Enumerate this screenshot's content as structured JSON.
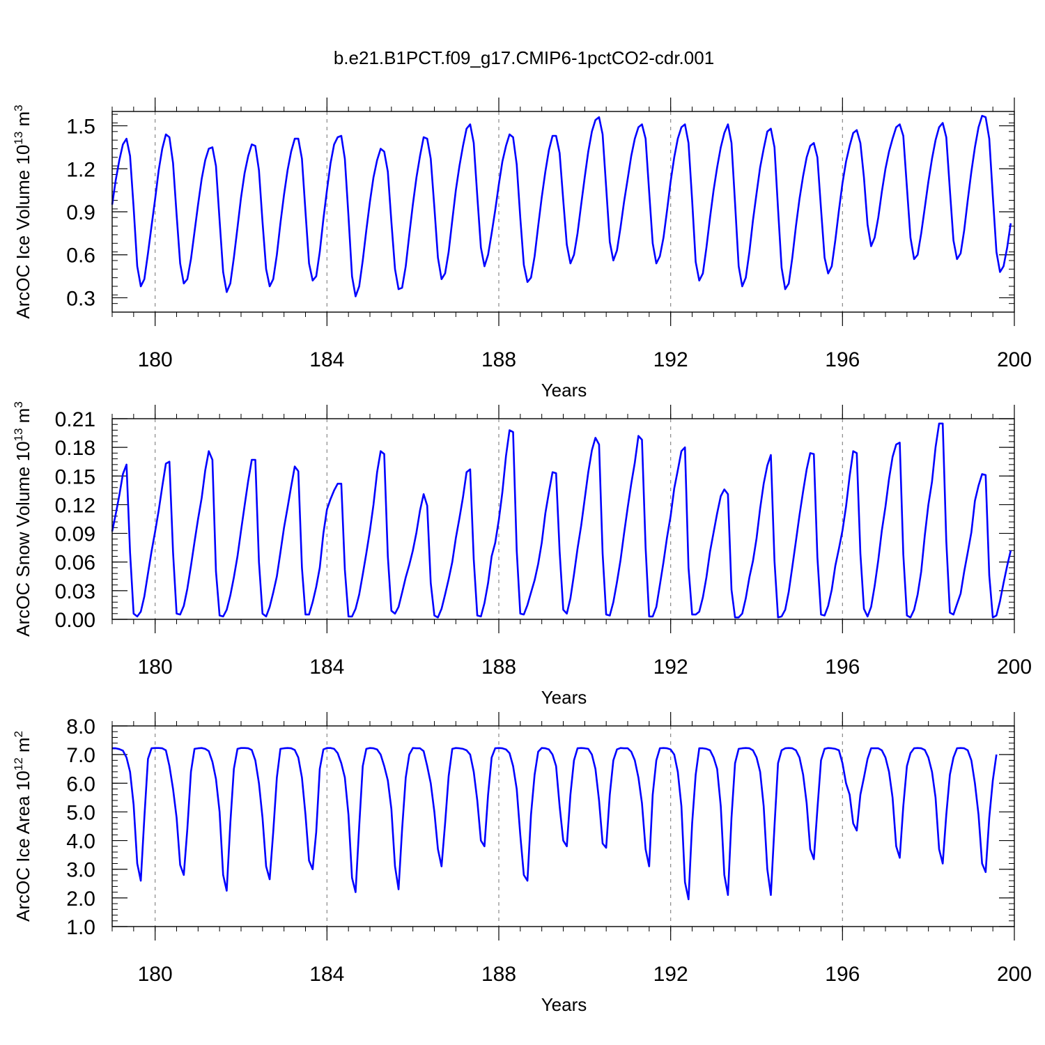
{
  "title": "b.e21.B1PCT.f09_g17.CMIP6-1pctCO2-cdr.001",
  "line_color": "#0000ff",
  "chart_data": [
    {
      "type": "line",
      "ylabel_main": "ArcOC Ice Volume 10",
      "ylabel_exp": "13",
      "ylabel_unit": " m",
      "ylabel_unit_exp": "3",
      "xlabel": "Years",
      "xlim": [
        179,
        200
      ],
      "ylim": [
        0.2,
        1.6
      ],
      "yticks": [
        0.3,
        0.6,
        0.9,
        1.2,
        1.5
      ],
      "ytick_labels": [
        "0.3",
        "0.6",
        "0.9",
        "1.2",
        "1.5"
      ],
      "xticks": [
        180,
        184,
        188,
        192,
        196,
        200
      ],
      "xtick_labels": [
        "180",
        "184",
        "188",
        "192",
        "196",
        "200"
      ],
      "series": [
        {
          "x_start": 179.0,
          "x_step": 0.08333,
          "values": [
            0.95,
            1.12,
            1.26,
            1.37,
            1.41,
            1.29,
            0.93,
            0.52,
            0.38,
            0.43,
            0.61,
            0.8,
            0.99,
            1.19,
            1.34,
            1.44,
            1.42,
            1.24,
            0.88,
            0.54,
            0.4,
            0.43,
            0.57,
            0.76,
            0.95,
            1.13,
            1.26,
            1.34,
            1.35,
            1.22,
            0.84,
            0.48,
            0.34,
            0.4,
            0.58,
            0.79,
            1.0,
            1.17,
            1.29,
            1.37,
            1.36,
            1.19,
            0.83,
            0.5,
            0.38,
            0.43,
            0.6,
            0.82,
            1.02,
            1.19,
            1.32,
            1.41,
            1.41,
            1.27,
            0.9,
            0.54,
            0.42,
            0.45,
            0.62,
            0.85,
            1.05,
            1.24,
            1.37,
            1.42,
            1.43,
            1.27,
            0.87,
            0.45,
            0.31,
            0.38,
            0.56,
            0.77,
            0.97,
            1.14,
            1.26,
            1.34,
            1.32,
            1.18,
            0.83,
            0.5,
            0.36,
            0.37,
            0.52,
            0.74,
            0.95,
            1.14,
            1.29,
            1.42,
            1.41,
            1.27,
            0.93,
            0.58,
            0.43,
            0.47,
            0.62,
            0.84,
            1.05,
            1.22,
            1.36,
            1.48,
            1.51,
            1.38,
            1.01,
            0.65,
            0.52,
            0.6,
            0.75,
            0.91,
            1.09,
            1.25,
            1.36,
            1.44,
            1.42,
            1.23,
            0.86,
            0.53,
            0.41,
            0.44,
            0.59,
            0.8,
            1.0,
            1.18,
            1.33,
            1.43,
            1.43,
            1.31,
            0.98,
            0.67,
            0.54,
            0.6,
            0.75,
            0.95,
            1.14,
            1.32,
            1.46,
            1.54,
            1.56,
            1.44,
            1.07,
            0.69,
            0.56,
            0.63,
            0.79,
            0.97,
            1.13,
            1.29,
            1.41,
            1.49,
            1.51,
            1.41,
            1.04,
            0.68,
            0.54,
            0.59,
            0.72,
            0.91,
            1.11,
            1.28,
            1.41,
            1.49,
            1.51,
            1.38,
            0.98,
            0.55,
            0.42,
            0.47,
            0.65,
            0.86,
            1.05,
            1.21,
            1.35,
            1.45,
            1.51,
            1.38,
            0.96,
            0.52,
            0.38,
            0.44,
            0.62,
            0.84,
            1.03,
            1.21,
            1.34,
            1.46,
            1.48,
            1.35,
            0.92,
            0.51,
            0.36,
            0.4,
            0.58,
            0.8,
            0.99,
            1.15,
            1.28,
            1.36,
            1.38,
            1.28,
            0.92,
            0.58,
            0.47,
            0.52,
            0.7,
            0.91,
            1.1,
            1.25,
            1.36,
            1.45,
            1.47,
            1.38,
            1.14,
            0.81,
            0.66,
            0.72,
            0.86,
            1.04,
            1.2,
            1.32,
            1.41,
            1.49,
            1.51,
            1.43,
            1.07,
            0.72,
            0.57,
            0.6,
            0.75,
            0.93,
            1.11,
            1.27,
            1.4,
            1.49,
            1.52,
            1.42,
            1.05,
            0.7,
            0.57,
            0.61,
            0.77,
            0.98,
            1.18,
            1.35,
            1.49,
            1.57,
            1.56,
            1.41,
            1.01,
            0.62,
            0.48,
            0.52,
            0.65,
            0.82
          ]
        }
      ]
    },
    {
      "type": "line",
      "ylabel_main": "ArcOC Snow Volume 10",
      "ylabel_exp": "13",
      "ylabel_unit": " m",
      "ylabel_unit_exp": "3",
      "xlabel": "Years",
      "xlim": [
        179,
        200
      ],
      "ylim": [
        0.0,
        0.21
      ],
      "yticks": [
        0.0,
        0.03,
        0.06,
        0.09,
        0.12,
        0.15,
        0.18,
        0.21
      ],
      "ytick_labels": [
        "0.00",
        "0.03",
        "0.06",
        "0.09",
        "0.12",
        "0.15",
        "0.18",
        "0.21"
      ],
      "xticks": [
        180,
        184,
        188,
        192,
        196,
        200
      ],
      "xtick_labels": [
        "180",
        "184",
        "188",
        "192",
        "196",
        "200"
      ],
      "series": [
        {
          "x_start": 179.0,
          "x_step": 0.08333,
          "values": [
            0.092,
            0.11,
            0.13,
            0.152,
            0.162,
            0.07,
            0.006,
            0.003,
            0.008,
            0.024,
            0.048,
            0.071,
            0.092,
            0.114,
            0.139,
            0.163,
            0.165,
            0.07,
            0.006,
            0.005,
            0.014,
            0.032,
            0.056,
            0.081,
            0.105,
            0.127,
            0.156,
            0.176,
            0.167,
            0.05,
            0.004,
            0.003,
            0.01,
            0.025,
            0.044,
            0.066,
            0.093,
            0.119,
            0.145,
            0.167,
            0.167,
            0.06,
            0.006,
            0.003,
            0.013,
            0.028,
            0.045,
            0.07,
            0.096,
            0.117,
            0.139,
            0.16,
            0.155,
            0.054,
            0.005,
            0.005,
            0.018,
            0.034,
            0.054,
            0.09,
            0.115,
            0.126,
            0.135,
            0.142,
            0.142,
            0.052,
            0.003,
            0.003,
            0.011,
            0.026,
            0.047,
            0.069,
            0.093,
            0.12,
            0.154,
            0.176,
            0.173,
            0.066,
            0.009,
            0.006,
            0.013,
            0.028,
            0.044,
            0.057,
            0.072,
            0.091,
            0.114,
            0.131,
            0.119,
            0.038,
            0.004,
            0.002,
            0.011,
            0.026,
            0.042,
            0.06,
            0.085,
            0.106,
            0.128,
            0.154,
            0.157,
            0.063,
            0.004,
            0.003,
            0.017,
            0.038,
            0.066,
            0.08,
            0.104,
            0.133,
            0.171,
            0.198,
            0.196,
            0.072,
            0.006,
            0.005,
            0.015,
            0.028,
            0.041,
            0.058,
            0.08,
            0.111,
            0.133,
            0.154,
            0.153,
            0.071,
            0.01,
            0.006,
            0.022,
            0.047,
            0.074,
            0.098,
            0.126,
            0.154,
            0.177,
            0.19,
            0.183,
            0.069,
            0.005,
            0.004,
            0.018,
            0.039,
            0.062,
            0.09,
            0.117,
            0.142,
            0.164,
            0.192,
            0.188,
            0.075,
            0.003,
            0.003,
            0.013,
            0.036,
            0.06,
            0.086,
            0.108,
            0.137,
            0.156,
            0.176,
            0.18,
            0.054,
            0.005,
            0.005,
            0.008,
            0.023,
            0.044,
            0.071,
            0.091,
            0.111,
            0.129,
            0.136,
            0.131,
            0.031,
            0.002,
            0.002,
            0.006,
            0.022,
            0.044,
            0.061,
            0.085,
            0.116,
            0.142,
            0.161,
            0.172,
            0.061,
            0.002,
            0.003,
            0.01,
            0.029,
            0.055,
            0.082,
            0.109,
            0.134,
            0.157,
            0.174,
            0.173,
            0.065,
            0.005,
            0.004,
            0.014,
            0.031,
            0.056,
            0.074,
            0.093,
            0.118,
            0.15,
            0.176,
            0.174,
            0.069,
            0.011,
            0.003,
            0.013,
            0.035,
            0.062,
            0.093,
            0.118,
            0.147,
            0.17,
            0.183,
            0.185,
            0.068,
            0.004,
            0.002,
            0.01,
            0.026,
            0.05,
            0.088,
            0.12,
            0.144,
            0.18,
            0.205,
            0.205,
            0.082,
            0.007,
            0.005,
            0.016,
            0.027,
            0.05,
            0.07,
            0.091,
            0.124,
            0.14,
            0.152,
            0.151,
            0.046,
            0.002,
            0.004,
            0.019,
            0.038,
            0.056,
            0.072
          ]
        }
      ]
    },
    {
      "type": "line",
      "ylabel_main": "ArcOC Ice Area 10",
      "ylabel_exp": "12",
      "ylabel_unit": " m",
      "ylabel_unit_exp": "2",
      "xlabel": "Years",
      "xlim": [
        179,
        200
      ],
      "ylim": [
        1.0,
        8.0
      ],
      "yticks": [
        1.0,
        2.0,
        3.0,
        4.0,
        5.0,
        6.0,
        7.0,
        8.0
      ],
      "ytick_labels": [
        "1.0",
        "2.0",
        "3.0",
        "4.0",
        "5.0",
        "6.0",
        "7.0",
        "8.0"
      ],
      "xticks": [
        180,
        184,
        188,
        192,
        196,
        200
      ],
      "xtick_labels": [
        "180",
        "184",
        "188",
        "192",
        "196",
        "200"
      ],
      "series": [
        {
          "x_start": 179.0,
          "x_step": 0.08333,
          "values": [
            7.22,
            7.22,
            7.19,
            7.14,
            6.9,
            6.4,
            5.25,
            3.2,
            2.6,
            4.8,
            6.85,
            7.22,
            7.23,
            7.23,
            7.22,
            7.15,
            6.6,
            5.8,
            4.8,
            3.15,
            2.8,
            4.4,
            6.4,
            7.2,
            7.22,
            7.23,
            7.2,
            7.12,
            6.75,
            6.15,
            5.0,
            2.8,
            2.25,
            4.6,
            6.5,
            7.2,
            7.23,
            7.23,
            7.22,
            7.16,
            6.8,
            6.0,
            4.8,
            3.1,
            2.65,
            4.3,
            6.2,
            7.2,
            7.22,
            7.23,
            7.22,
            7.16,
            6.9,
            6.2,
            4.9,
            3.3,
            3.0,
            4.3,
            6.5,
            7.18,
            7.23,
            7.23,
            7.2,
            7.05,
            6.7,
            6.2,
            4.9,
            2.7,
            2.2,
            4.5,
            6.6,
            7.2,
            7.23,
            7.22,
            7.18,
            7.0,
            6.6,
            6.1,
            5.1,
            3.1,
            2.3,
            4.4,
            6.2,
            7.0,
            7.23,
            7.22,
            7.22,
            7.12,
            6.6,
            6.0,
            5.0,
            3.7,
            3.1,
            4.6,
            6.25,
            7.2,
            7.23,
            7.22,
            7.2,
            7.15,
            7.0,
            6.4,
            5.4,
            4.0,
            3.8,
            5.6,
            6.9,
            7.22,
            7.23,
            7.22,
            7.18,
            7.05,
            6.6,
            5.8,
            4.2,
            2.8,
            2.6,
            4.9,
            6.3,
            7.1,
            7.23,
            7.22,
            7.18,
            7.0,
            6.6,
            5.2,
            4.0,
            3.8,
            5.6,
            6.8,
            7.22,
            7.23,
            7.22,
            7.2,
            7.0,
            6.5,
            5.4,
            3.9,
            3.75,
            5.6,
            6.8,
            7.18,
            7.23,
            7.22,
            7.22,
            7.1,
            6.8,
            6.2,
            5.3,
            3.7,
            3.1,
            5.6,
            6.8,
            7.22,
            7.23,
            7.22,
            7.18,
            7.0,
            6.4,
            5.2,
            2.55,
            1.95,
            4.6,
            6.3,
            7.22,
            7.22,
            7.2,
            7.15,
            6.9,
            6.5,
            5.2,
            2.8,
            2.1,
            4.8,
            6.7,
            7.2,
            7.22,
            7.23,
            7.22,
            7.15,
            6.9,
            6.4,
            5.2,
            3.0,
            2.1,
            4.5,
            6.7,
            7.15,
            7.22,
            7.23,
            7.22,
            7.15,
            6.9,
            6.3,
            5.3,
            3.7,
            3.35,
            5.1,
            6.8,
            7.2,
            7.23,
            7.22,
            7.2,
            7.15,
            6.7,
            6.0,
            5.6,
            4.6,
            4.35,
            5.6,
            6.2,
            6.85,
            7.22,
            7.22,
            7.22,
            7.15,
            6.9,
            6.4,
            5.5,
            3.8,
            3.4,
            5.2,
            6.6,
            7.05,
            7.22,
            7.23,
            7.22,
            7.16,
            6.9,
            6.4,
            5.5,
            3.7,
            3.2,
            4.9,
            6.3,
            6.9,
            7.22,
            7.23,
            7.22,
            7.15,
            6.8,
            6.0,
            4.9,
            3.2,
            2.9,
            4.8,
            6.1,
            7.0
          ]
        }
      ]
    }
  ]
}
